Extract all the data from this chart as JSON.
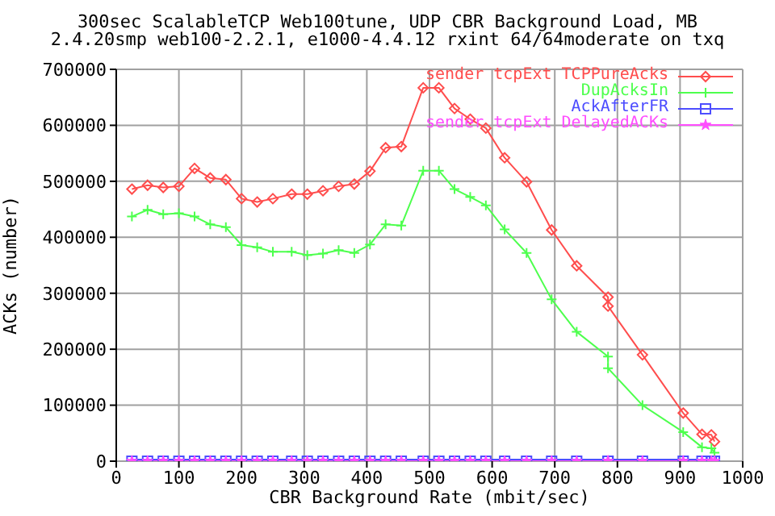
{
  "chart_data": {
    "type": "line",
    "title": "300sec ScalableTCP Web100tune, UDP CBR Background Load, MB",
    "subtitle": "2.4.20smp web100-2.2.1, e1000-4.4.12 rxint 64/64moderate on txq",
    "xlabel": "CBR Background Rate (mbit/sec)",
    "ylabel": "ACKs (number)",
    "x": [
      25,
      50,
      75,
      100,
      125,
      150,
      175,
      200,
      225,
      250,
      280,
      305,
      330,
      355,
      380,
      405,
      430,
      455,
      490,
      515,
      540,
      565,
      590,
      620,
      655,
      695,
      735,
      785,
      785,
      840,
      905,
      935,
      950,
      955
    ],
    "series": [
      {
        "name": "sender tcpExt TCPPureAcks",
        "color": "#ff4d4d",
        "marker": "diamond",
        "values": [
          486000,
          493000,
          489000,
          491000,
          523000,
          506000,
          503000,
          469000,
          463000,
          469000,
          477000,
          477000,
          483000,
          491000,
          495000,
          518000,
          560000,
          562000,
          667000,
          667000,
          630000,
          611000,
          595000,
          542000,
          499000,
          413000,
          349000,
          293000,
          277000,
          190000,
          86000,
          48000,
          47000,
          35000
        ]
      },
      {
        "name": "DupAcksIn",
        "color": "#4dff4d",
        "marker": "cross",
        "values": [
          437000,
          449000,
          441000,
          443000,
          437000,
          423000,
          418000,
          386000,
          382000,
          374000,
          374000,
          368000,
          371000,
          377000,
          372000,
          387000,
          423000,
          421000,
          519000,
          519000,
          486000,
          472000,
          457000,
          414000,
          372000,
          289000,
          231000,
          187000,
          166000,
          100000,
          52000,
          25000,
          23000,
          15000
        ]
      },
      {
        "name": "AckAfterFR",
        "color": "#4d4dff",
        "marker": "square",
        "values": [
          0,
          0,
          0,
          0,
          0,
          0,
          0,
          0,
          0,
          0,
          0,
          0,
          0,
          0,
          0,
          0,
          0,
          0,
          0,
          0,
          0,
          0,
          0,
          0,
          0,
          0,
          0,
          0,
          0,
          0,
          0,
          0,
          0,
          0
        ]
      },
      {
        "name": "sender tcpExt DelayedACKs",
        "color": "#ff4dff",
        "marker": "star",
        "values": [
          0,
          0,
          0,
          0,
          0,
          0,
          0,
          0,
          0,
          0,
          0,
          0,
          0,
          0,
          0,
          0,
          0,
          0,
          0,
          0,
          0,
          0,
          0,
          0,
          0,
          0,
          0,
          0,
          0,
          0,
          0,
          0,
          0,
          0
        ]
      }
    ],
    "xlim": [
      0,
      1000
    ],
    "xticks": [
      0,
      100,
      200,
      300,
      400,
      500,
      600,
      700,
      800,
      900,
      1000
    ],
    "ylim": [
      0,
      700000
    ],
    "yticks": [
      0,
      100000,
      200000,
      300000,
      400000,
      500000,
      600000,
      700000
    ],
    "grid": true,
    "legend": "top right",
    "line_style": "solid"
  }
}
